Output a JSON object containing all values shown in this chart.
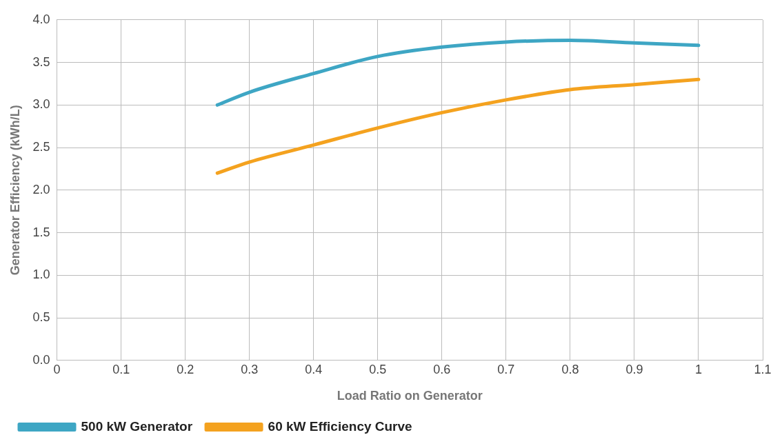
{
  "chart_data": {
    "type": "line",
    "xlabel": "Load Ratio on Generator",
    "ylabel": "Generator Efficiency (kWh/L)",
    "x": [
      0.25,
      0.3,
      0.4,
      0.5,
      0.6,
      0.7,
      0.8,
      0.9,
      1
    ],
    "series": [
      {
        "name": "500 kW Generator",
        "color": "#3ea6c4",
        "values": [
          3.0,
          3.15,
          3.37,
          3.57,
          3.68,
          3.74,
          3.76,
          3.73,
          3.7
        ]
      },
      {
        "name": "60 kW Efficiency Curve",
        "color": "#f4a21f",
        "values": [
          2.2,
          2.33,
          2.53,
          2.73,
          2.91,
          3.06,
          3.18,
          3.24,
          3.3
        ]
      }
    ],
    "xlim": [
      0,
      1.1
    ],
    "xticks": [
      0,
      0.1,
      0.2,
      0.3,
      0.4,
      0.5,
      0.6,
      0.7,
      0.8,
      0.9,
      1,
      1.1
    ],
    "ylim": [
      0,
      4
    ],
    "yticks": [
      {
        "value": 0,
        "label": "0.0"
      },
      {
        "value": 0.5,
        "label": "0.5"
      },
      {
        "value": 1,
        "label": "1.0"
      },
      {
        "value": 1.5,
        "label": "1.5"
      },
      {
        "value": 2,
        "label": "2.0"
      },
      {
        "value": 2.5,
        "label": "2.5"
      },
      {
        "value": 3,
        "label": "3.0"
      },
      {
        "value": 3.5,
        "label": "3.5"
      },
      {
        "value": 4,
        "label": "4.0"
      }
    ],
    "grid": true,
    "legend": "bottom",
    "marker": "none",
    "line_style": "solid"
  }
}
